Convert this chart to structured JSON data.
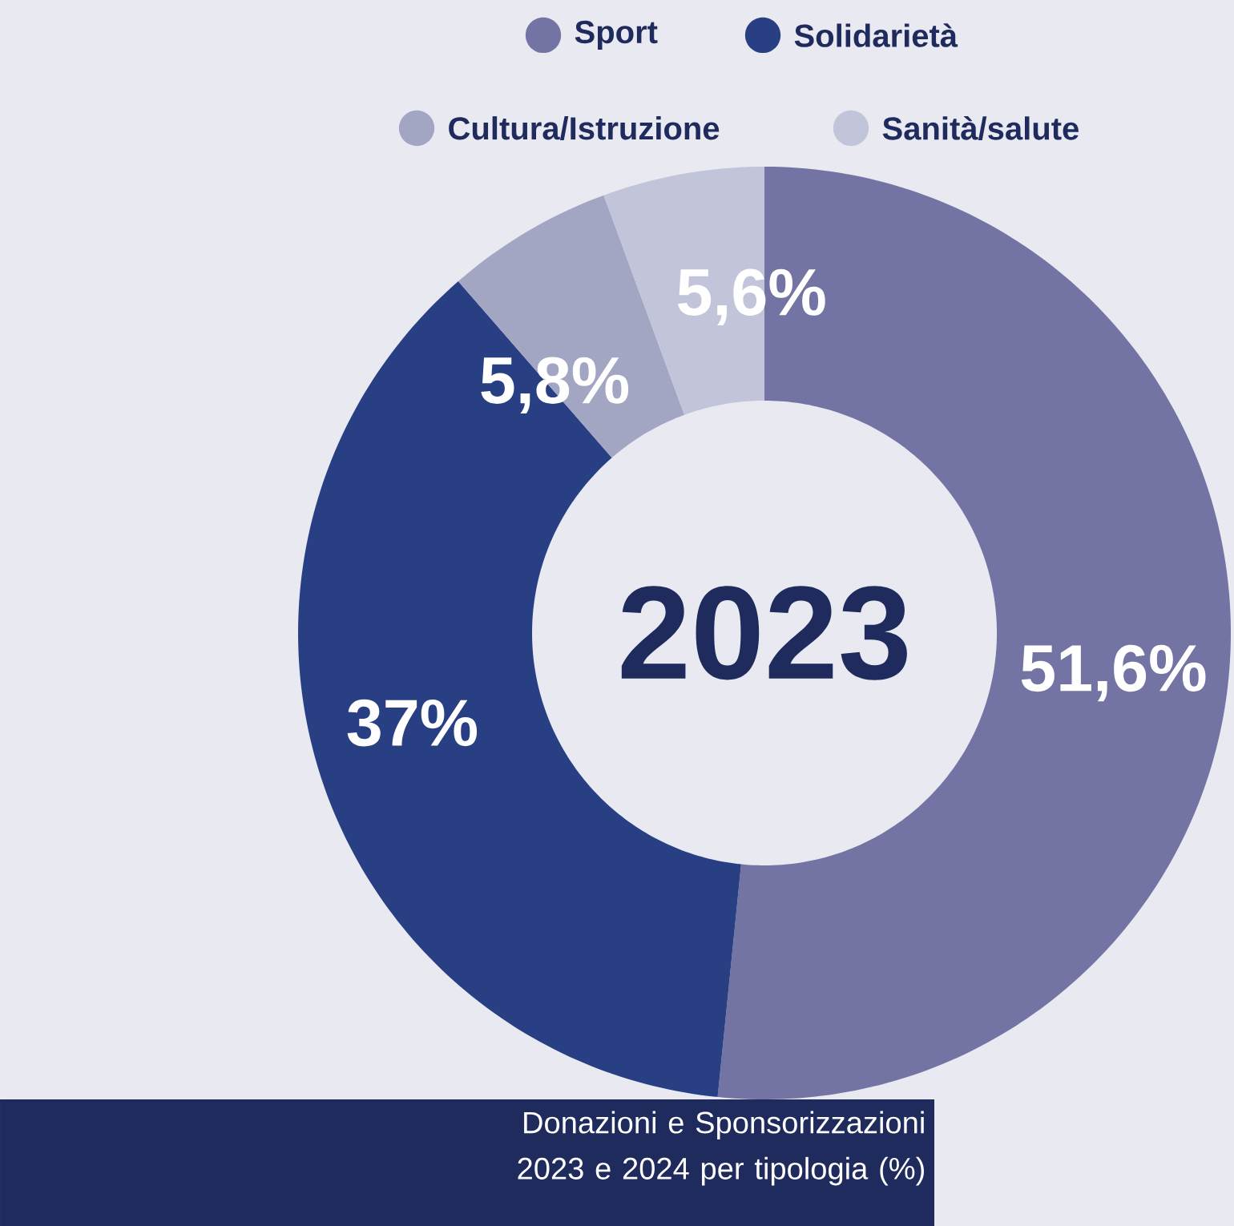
{
  "chart_data": {
    "type": "donut",
    "title": "Donazioni e Sponsorizzazioni 2023 e 2024 per tipologia (%)",
    "annotations": [
      "2023"
    ],
    "categories": [
      "Sport",
      "Solidarietà",
      "Cultura/Istruzione",
      "Sanità/salute"
    ],
    "values": [
      51.6,
      37,
      5.8,
      5.6
    ],
    "colors": [
      "#7374a3",
      "#283f83",
      "#a3a6c2",
      "#c2c5da"
    ],
    "value_labels": [
      "51,6%",
      "37%",
      "5,8%",
      "5,6%"
    ],
    "legend": "top"
  }
}
